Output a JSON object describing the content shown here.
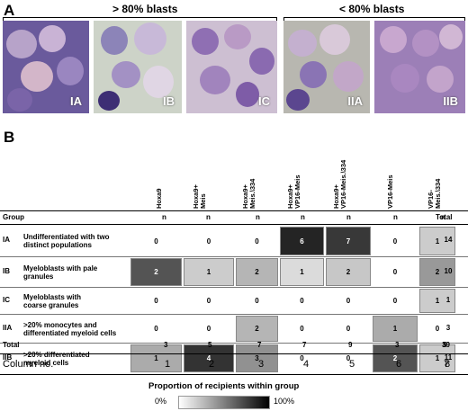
{
  "panel_a": {
    "letter": "A",
    "group_high": "> 80% blasts",
    "group_low": "< 80% blasts",
    "images": [
      {
        "label": "IA"
      },
      {
        "label": "IB"
      },
      {
        "label": "IC"
      },
      {
        "label": "IIA"
      },
      {
        "label": "IIB"
      }
    ]
  },
  "panel_b": {
    "letter": "B",
    "columns": [
      "Hoxa9",
      "Hoxa9+\nMeis",
      "Hoxa9+\nMeis.\\334",
      "Hoxa9+\nVP16-Meis",
      "Hoxa9+\nVP16-Meis.\\334",
      "VP16-Meis",
      "VP16-\nMeis.\\334"
    ],
    "group_header": "Group",
    "n_header": "n",
    "total_header": "Total",
    "rows": [
      {
        "id": "IA",
        "label": "Undifferentiated with two\ndistinct populations",
        "values": [
          "0",
          "0",
          "0",
          "6",
          "7",
          "0",
          "1"
        ],
        "shade": [
          0,
          0,
          0,
          0.86,
          0.78,
          0,
          0.2
        ],
        "total": "14"
      },
      {
        "id": "IB",
        "label": "Myeloblasts with pale\ngranules",
        "values": [
          "2",
          "1",
          "2",
          "1",
          "2",
          "0",
          "2"
        ],
        "shade": [
          0.67,
          0.2,
          0.29,
          0.14,
          0.22,
          0,
          0.4
        ],
        "total": "10"
      },
      {
        "id": "IC",
        "label": "Myeloblasts with\ncoarse granules",
        "values": [
          "0",
          "0",
          "0",
          "0",
          "0",
          "0",
          "1"
        ],
        "shade": [
          0,
          0,
          0,
          0,
          0,
          0,
          0.2
        ],
        "total": "1"
      },
      {
        "id": "IIA",
        "label": ">20% monocytes and\ndifferentiated myeloid cells",
        "values": [
          "0",
          "0",
          "2",
          "0",
          "0",
          "1",
          "0"
        ],
        "shade": [
          0,
          0,
          0.29,
          0,
          0,
          0.33,
          0
        ],
        "total": "3"
      },
      {
        "id": "IIB",
        "label": ">20% differentiated\nmyeloid cells",
        "values": [
          "1",
          "4",
          "3",
          "0",
          "0",
          "2",
          "1"
        ],
        "shade": [
          0.33,
          0.8,
          0.43,
          0,
          0,
          0.67,
          0.2
        ],
        "total": "11"
      }
    ],
    "totals_label": "Total",
    "totals": [
      "3",
      "5",
      "7",
      "7",
      "9",
      "3",
      "5"
    ],
    "grand_total": "39",
    "column_no_label": "Column no.",
    "column_numbers": [
      "1",
      "2",
      "3",
      "4",
      "5",
      "6",
      "7",
      "8"
    ],
    "legend": {
      "title": "Proportion of recipients within group",
      "min_label": "0%",
      "max_label": "100%"
    }
  }
}
